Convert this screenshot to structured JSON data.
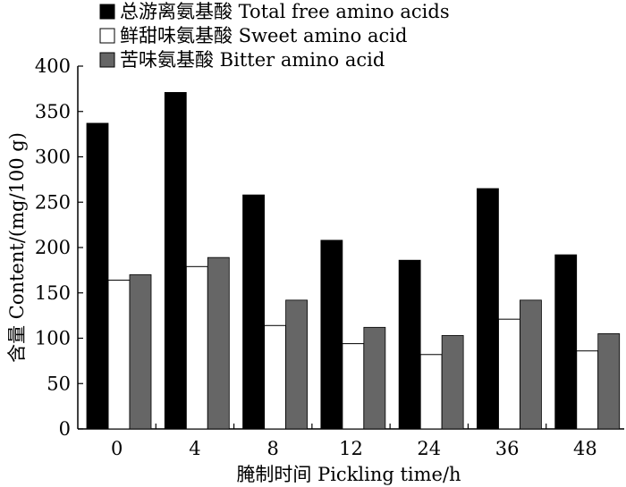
{
  "chart_data": {
    "type": "bar",
    "categories": [
      "0",
      "4",
      "8",
      "12",
      "24",
      "36",
      "48"
    ],
    "series": [
      {
        "name": "总游离氨基酸 Total free amino acids",
        "values": [
          337,
          371,
          258,
          208,
          186,
          265,
          192
        ],
        "color": "#000000"
      },
      {
        "name": "鲜甜味氨基酸 Sweet amino acid",
        "values": [
          164,
          179,
          114,
          94,
          82,
          121,
          86
        ],
        "color": "#ffffff"
      },
      {
        "name": "苦味氨基酸 Bitter amino acid",
        "values": [
          170,
          189,
          142,
          112,
          103,
          142,
          105
        ],
        "color": "#666666"
      }
    ],
    "xlabel": "腌制时间 Pickling time/h",
    "ylabel": "含量 Content/(mg/100 g)",
    "ylim": [
      0,
      400
    ],
    "yticks": [
      0,
      50,
      100,
      150,
      200,
      250,
      300,
      350,
      400
    ],
    "grid": false,
    "legend_position": "top-left"
  }
}
